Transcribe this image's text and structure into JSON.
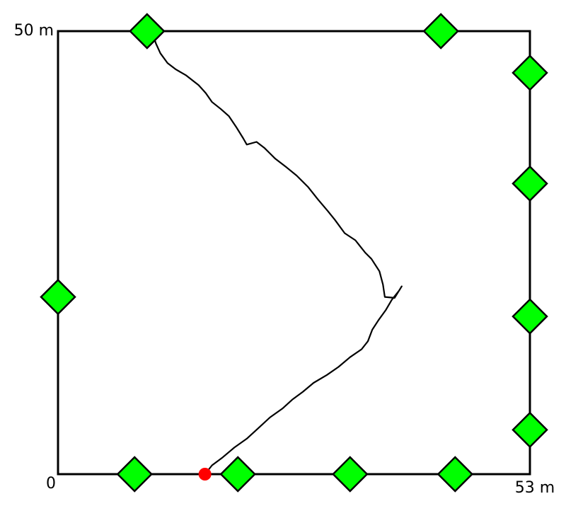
{
  "labels": {
    "top_left": "50 m",
    "bottom_left": "0",
    "bottom_right": "53 m"
  },
  "area": {
    "width_m": 53,
    "height_m": 50,
    "border_color": "#000000"
  },
  "markers": {
    "color": "#00ff00",
    "stroke": "#000000",
    "shape": "diamond",
    "positions_m": [
      {
        "x": 10.0,
        "y": 50.0
      },
      {
        "x": 43.0,
        "y": 50.0
      },
      {
        "x": 53.0,
        "y": 45.3
      },
      {
        "x": 53.0,
        "y": 32.8
      },
      {
        "x": 53.0,
        "y": 17.8
      },
      {
        "x": 53.0,
        "y": 5.0
      },
      {
        "x": 0.0,
        "y": 20.0
      },
      {
        "x": 8.6,
        "y": 0.0
      },
      {
        "x": 20.2,
        "y": 0.0
      },
      {
        "x": 32.8,
        "y": 0.0
      },
      {
        "x": 44.6,
        "y": 0.0
      }
    ]
  },
  "start_point": {
    "color": "#ff0000",
    "x": 16.5,
    "y": 0.0
  },
  "track": {
    "color": "#000000",
    "points_m": [
      [
        16.5,
        0.0
      ],
      [
        17.3,
        1.0
      ],
      [
        18.5,
        1.9
      ],
      [
        19.8,
        3.0
      ],
      [
        21.2,
        4.0
      ],
      [
        22.5,
        5.2
      ],
      [
        23.8,
        6.4
      ],
      [
        25.2,
        7.4
      ],
      [
        26.3,
        8.4
      ],
      [
        27.5,
        9.3
      ],
      [
        28.7,
        10.3
      ],
      [
        30.2,
        11.2
      ],
      [
        31.5,
        12.1
      ],
      [
        32.8,
        13.2
      ],
      [
        34.1,
        14.1
      ],
      [
        34.8,
        15.0
      ],
      [
        35.3,
        16.3
      ],
      [
        36.0,
        17.4
      ],
      [
        36.8,
        18.5
      ],
      [
        37.5,
        19.7
      ],
      [
        38.3,
        20.7
      ],
      [
        38.6,
        21.2
      ],
      [
        37.8,
        19.9
      ],
      [
        36.7,
        20.0
      ],
      [
        36.5,
        21.4
      ],
      [
        36.1,
        22.9
      ],
      [
        35.2,
        24.3
      ],
      [
        34.5,
        25.0
      ],
      [
        33.4,
        26.4
      ],
      [
        32.2,
        27.2
      ],
      [
        31.1,
        28.7
      ],
      [
        30.3,
        29.7
      ],
      [
        29.2,
        31.0
      ],
      [
        28.1,
        32.4
      ],
      [
        26.8,
        33.7
      ],
      [
        25.7,
        34.6
      ],
      [
        24.4,
        35.6
      ],
      [
        23.2,
        36.8
      ],
      [
        22.3,
        37.5
      ],
      [
        21.2,
        37.2
      ],
      [
        20.8,
        37.9
      ],
      [
        20.0,
        39.2
      ],
      [
        19.2,
        40.4
      ],
      [
        18.3,
        41.2
      ],
      [
        17.3,
        42.0
      ],
      [
        16.6,
        43.0
      ],
      [
        15.8,
        43.9
      ],
      [
        14.4,
        45.0
      ],
      [
        13.2,
        45.7
      ],
      [
        12.3,
        46.4
      ],
      [
        11.5,
        47.5
      ],
      [
        11.0,
        48.6
      ],
      [
        10.6,
        49.8
      ]
    ]
  }
}
